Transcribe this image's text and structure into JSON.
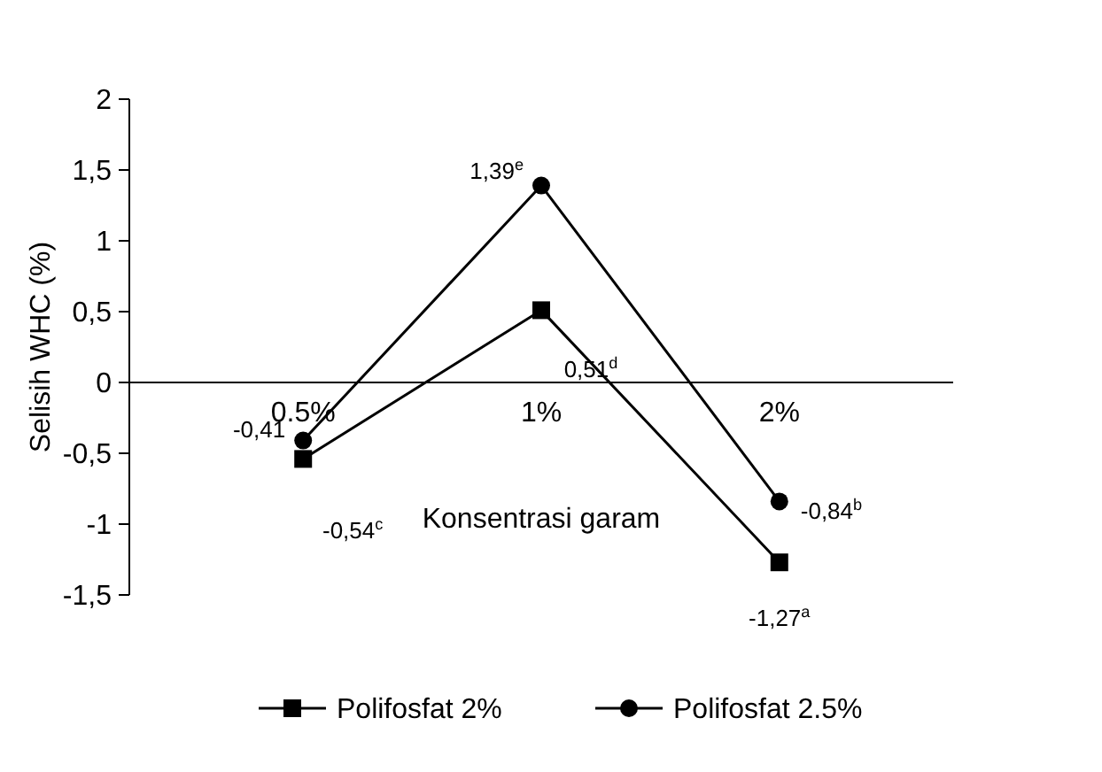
{
  "chart_data": {
    "type": "line",
    "xlabel": "Konsentrasi garam",
    "ylabel": "Selisih WHC  (%)",
    "categories": [
      "0.5%",
      "1%",
      "2%"
    ],
    "ylim": [
      -1.5,
      2
    ],
    "yticks": [
      {
        "value": -1.5,
        "label": "-1,5"
      },
      {
        "value": -1,
        "label": "-1"
      },
      {
        "value": -0.5,
        "label": "-0,5"
      },
      {
        "value": 0,
        "label": "0"
      },
      {
        "value": 0.5,
        "label": "0,5"
      },
      {
        "value": 1,
        "label": "1"
      },
      {
        "value": 1.5,
        "label": "1,5"
      },
      {
        "value": 2,
        "label": "2"
      }
    ],
    "series": [
      {
        "name": "Polifosfat 2%",
        "color": "#000000",
        "marker": "square",
        "values": [
          -0.54,
          0.51,
          -1.27
        ],
        "value_labels": [
          "-0,54$^{c}$",
          "0,51$^{d}$",
          "-1,27$^{a}$"
        ]
      },
      {
        "name": "Polifosfat 2.5%",
        "color": "#000000",
        "marker": "circle",
        "values": [
          -0.41,
          1.39,
          -0.84
        ],
        "value_labels": [
          "-0,41",
          "1,39$^{e}$",
          "-0,84$^{b}$"
        ]
      }
    ],
    "grid": false,
    "legend": "bottom"
  }
}
